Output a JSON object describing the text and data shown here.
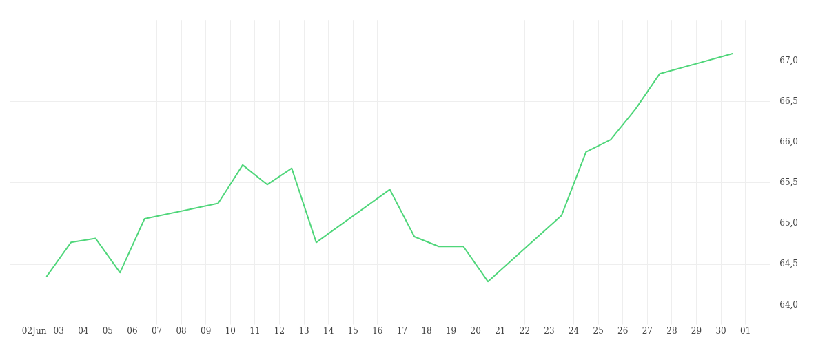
{
  "chart_data": {
    "type": "line",
    "x": [
      "--06-02T12:00",
      "--06-03T12:00",
      "--06-04T12:00",
      "--06-05T12:00",
      "--06-06T12:00",
      "--06-09T12:00",
      "--06-10T12:00",
      "--06-11T12:00",
      "--06-12T12:00",
      "--06-13T12:00",
      "--06-16T12:00",
      "--06-17T12:00",
      "--06-18T12:00",
      "--06-19T12:00",
      "--06-20T12:00",
      "--06-23T12:00",
      "--06-24T12:00",
      "--06-25T12:00",
      "--06-26T12:00",
      "--06-27T12:00",
      "--06-30T12:00"
    ],
    "series": [
      {
        "color": "#4fd67a",
        "values": [
          64.35,
          64.77,
          64.82,
          64.4,
          65.06,
          65.25,
          65.72,
          65.48,
          65.68,
          64.77,
          65.42,
          64.84,
          64.72,
          64.72,
          64.29,
          65.1,
          65.88,
          66.03,
          66.4,
          66.84,
          67.09
        ]
      }
    ],
    "xlim": [
      "--06-01",
      "--07-02"
    ],
    "xticks": [
      {
        "value": "--06-02",
        "label": "02Jun"
      },
      {
        "value": "--06-03",
        "label": "03"
      },
      {
        "value": "--06-04",
        "label": "04"
      },
      {
        "value": "--06-05",
        "label": "05"
      },
      {
        "value": "--06-06",
        "label": "06"
      },
      {
        "value": "--06-07",
        "label": "07"
      },
      {
        "value": "--06-08",
        "label": "08"
      },
      {
        "value": "--06-09",
        "label": "09"
      },
      {
        "value": "--06-10",
        "label": "10"
      },
      {
        "value": "--06-11",
        "label": "11"
      },
      {
        "value": "--06-12",
        "label": "12"
      },
      {
        "value": "--06-13",
        "label": "13"
      },
      {
        "value": "--06-14",
        "label": "14"
      },
      {
        "value": "--06-15",
        "label": "15"
      },
      {
        "value": "--06-16",
        "label": "16"
      },
      {
        "value": "--06-17",
        "label": "17"
      },
      {
        "value": "--06-18",
        "label": "18"
      },
      {
        "value": "--06-19",
        "label": "19"
      },
      {
        "value": "--06-20",
        "label": "20"
      },
      {
        "value": "--06-21",
        "label": "21"
      },
      {
        "value": "--06-22",
        "label": "22"
      },
      {
        "value": "--06-23",
        "label": "23"
      },
      {
        "value": "--06-24",
        "label": "24"
      },
      {
        "value": "--06-25",
        "label": "25"
      },
      {
        "value": "--06-26",
        "label": "26"
      },
      {
        "value": "--06-27",
        "label": "27"
      },
      {
        "value": "--06-28",
        "label": "28"
      },
      {
        "value": "--06-29",
        "label": "29"
      },
      {
        "value": "--06-30",
        "label": "30"
      },
      {
        "value": "--07-01",
        "label": "01"
      }
    ],
    "ylim": [
      63.83,
      67.5
    ],
    "yticks": [
      {
        "value": 64,
        "label": "64,0"
      },
      {
        "value": 64.5,
        "label": "64,5"
      },
      {
        "value": 65,
        "label": "65,0"
      },
      {
        "value": 65.5,
        "label": "65,5"
      },
      {
        "value": 66,
        "label": "66,0"
      },
      {
        "value": 66.5,
        "label": "66,5"
      },
      {
        "value": 67,
        "label": "67,0"
      }
    ],
    "grid": true,
    "legend": false,
    "marker": "none",
    "line_style": "solid"
  }
}
